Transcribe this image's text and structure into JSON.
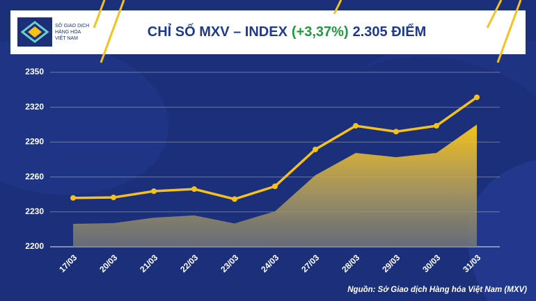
{
  "logo_text": [
    "SỞ GIAO DỊCH",
    "HÀNG HÓA",
    "VIỆT NAM"
  ],
  "source": "Nguồn: Sở Giao dịch Hàng hóa Việt Nam (MXV)",
  "chart_data": {
    "type": "line",
    "title": "CHỈ SỐ MXV – INDEX",
    "title_change": "(+3,37%)",
    "title_value": "2.305 ĐIỂM",
    "categories": [
      "17/03",
      "20/03",
      "21/03",
      "22/03",
      "23/03",
      "24/03",
      "27/03",
      "28/03",
      "29/03",
      "30/03",
      "31/03"
    ],
    "series": [
      {
        "type": "area",
        "color": "#f5c21b",
        "values": [
          2219.7,
          2220.3,
          2225,
          2227,
          2220,
          2230.5,
          2261.5,
          2280.7,
          2277,
          2280.7,
          2305
        ]
      },
      {
        "type": "line",
        "color": "#f5c21b",
        "values": [
          2242,
          2242.4,
          2247.8,
          2249.6,
          2241,
          2252,
          2283.7,
          2304,
          2299,
          2304,
          2328.5
        ]
      }
    ],
    "ylim": [
      2200,
      2350
    ],
    "yticks": [
      2200,
      2230,
      2260,
      2290,
      2320,
      2350
    ],
    "grid": true
  }
}
